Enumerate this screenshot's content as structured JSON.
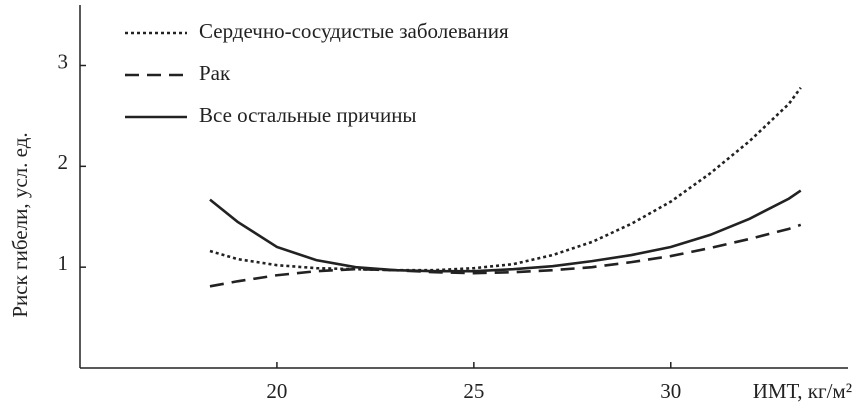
{
  "chart_data": {
    "type": "line",
    "x_label": "ИМТ, кг/м²",
    "y_label": "Риск гибели, усл. ед.",
    "x": [
      18.3,
      19,
      20,
      21,
      22,
      23,
      24,
      25,
      26,
      27,
      28,
      29,
      30,
      31,
      32,
      33,
      33.3
    ],
    "series": [
      {
        "name": "Сердечно-сосудистые заболевания",
        "color": "#222222",
        "dash": "dotted",
        "values": [
          1.16,
          1.08,
          1.02,
          0.99,
          0.98,
          0.97,
          0.97,
          0.99,
          1.03,
          1.12,
          1.25,
          1.43,
          1.65,
          1.93,
          2.25,
          2.62,
          2.78
        ]
      },
      {
        "name": "Рак",
        "color": "#222222",
        "dash": "dashed",
        "values": [
          0.81,
          0.86,
          0.92,
          0.96,
          0.98,
          0.97,
          0.95,
          0.94,
          0.95,
          0.97,
          1.0,
          1.05,
          1.11,
          1.19,
          1.28,
          1.38,
          1.42
        ]
      },
      {
        "name": "Все остальные причины",
        "color": "#222222",
        "dash": "solid",
        "values": [
          1.67,
          1.45,
          1.2,
          1.07,
          1.0,
          0.97,
          0.96,
          0.96,
          0.98,
          1.01,
          1.06,
          1.12,
          1.2,
          1.32,
          1.48,
          1.68,
          1.76
        ]
      }
    ],
    "xlim": [
      15,
      34.5
    ],
    "ylim": [
      0,
      3.6
    ],
    "xticks": [
      20,
      25,
      30
    ],
    "yticks": [
      1,
      2,
      3
    ],
    "legend": "top-left",
    "grid": false
  }
}
